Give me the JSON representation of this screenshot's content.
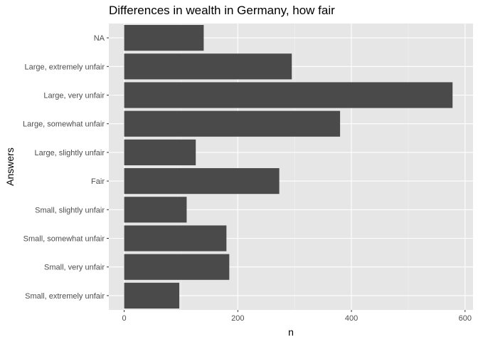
{
  "chart_data": {
    "type": "bar",
    "orientation": "horizontal",
    "title": "Differences in wealth in Germany, how fair",
    "xlabel": "n",
    "ylabel": "Answers",
    "categories": [
      "NA",
      "Large, extremely unfair",
      "Large, very unfair",
      "Large, somewhat unfair",
      "Large, slightly unfair",
      "Fair",
      "Small, slightly unfair",
      "Small, somewhat unfair",
      "Small, very unfair",
      "Small, extremely unfair"
    ],
    "values": [
      140,
      295,
      578,
      380,
      126,
      273,
      110,
      180,
      185,
      97
    ],
    "xlim": [
      -27,
      614
    ],
    "xticks": [
      0,
      200,
      400,
      600
    ],
    "xtick_labels": [
      "0",
      "200",
      "400",
      "600"
    ],
    "grid": true,
    "colors": {
      "bar": "#4a4a4a",
      "panel_background": "#e6e6e6",
      "grid_major": "#ffffff",
      "grid_minor": "#f2f2f2"
    }
  }
}
